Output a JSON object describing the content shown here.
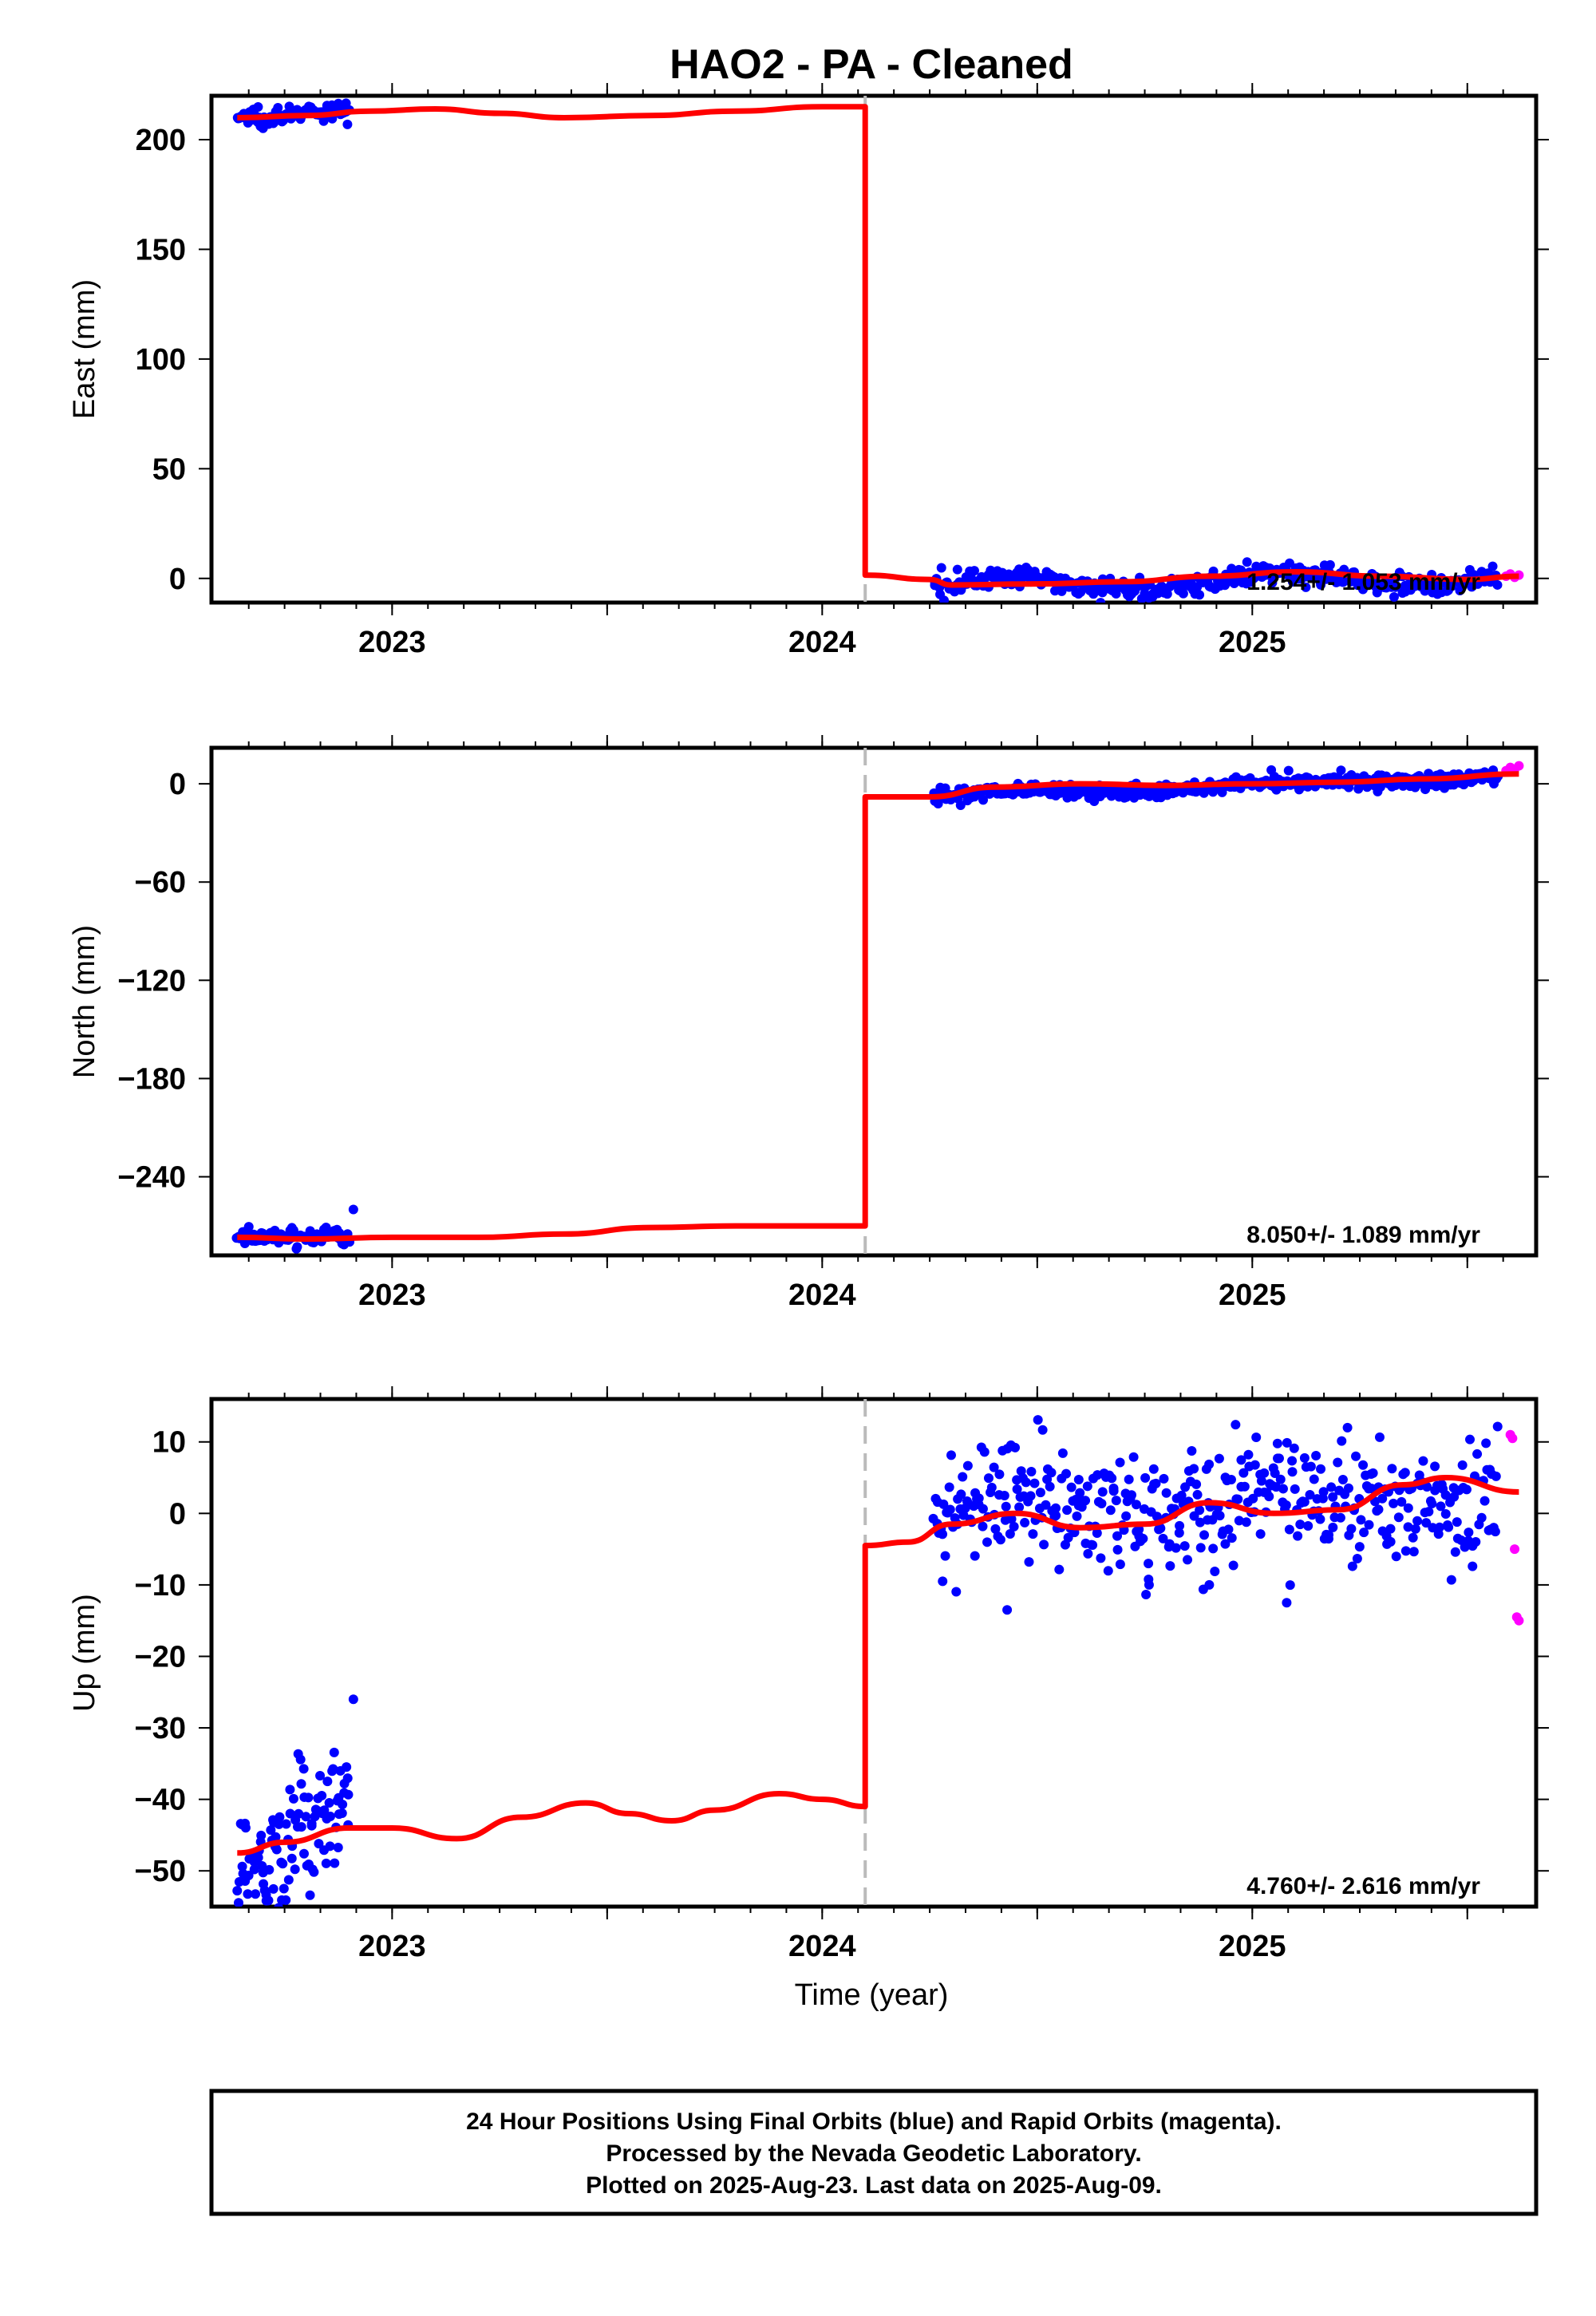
{
  "title": "HAO2  - PA - Cleaned",
  "xlabel": "Time (year)",
  "footer": {
    "line1": "24 Hour Positions Using Final Orbits (blue) and Rapid Orbits (magenta).",
    "line2": "Processed by the Nevada Geodetic Laboratory.",
    "line3": "Plotted on 2025-Aug-23. Last data on 2025-Aug-09."
  },
  "colors": {
    "final_orbits": "#0000ff",
    "rapid_orbits": "#ff00ff",
    "model": "#ff0000",
    "offset_line": "#bbbbbb"
  },
  "chart_data": [
    {
      "type": "scatter",
      "ylabel": "East (mm)",
      "xlim": [
        2022.58,
        2025.66
      ],
      "ylim": [
        -11,
        220
      ],
      "xticks": [
        2023,
        2024,
        2025
      ],
      "yticks": [
        0,
        50,
        100,
        150,
        200
      ],
      "grid": false,
      "rate_label": "1.254+/- 1.053 mm/yr",
      "offset_epoch": 2024.1,
      "model": {
        "x": [
          2022.64,
          2022.8,
          2022.95,
          2023.1,
          2023.25,
          2023.4,
          2023.6,
          2023.8,
          2024.0,
          2024.1,
          2024.1,
          2024.25,
          2024.3,
          2024.5,
          2024.7,
          2024.9,
          2025.1,
          2025.3,
          2025.5,
          2025.62
        ],
        "y": [
          210,
          211,
          213,
          214,
          212,
          210,
          211,
          213,
          215,
          215,
          1.5,
          -0.5,
          -3,
          -2.5,
          -1.5,
          1,
          3,
          1,
          -0.5,
          1
        ]
      },
      "final_segments": [
        {
          "x_start": 2022.64,
          "x_end": 2022.9,
          "y_start": 210,
          "y_end": 213,
          "spread": 2.2,
          "count": 90
        },
        {
          "x_start": 2024.26,
          "x_end": 2025.57,
          "y_start": -3,
          "y_end": 0.5,
          "spread": 2.2,
          "count": 420,
          "wave": 3
        }
      ],
      "rapid_points": {
        "x": [
          2025.59,
          2025.6,
          2025.61,
          2025.62
        ],
        "y": [
          1,
          2,
          0.5,
          1.5
        ]
      }
    },
    {
      "type": "scatter",
      "ylabel": "North (mm)",
      "xlim": [
        2022.58,
        2025.66
      ],
      "ylim": [
        -288,
        22
      ],
      "xticks": [
        2023,
        2024,
        2025
      ],
      "yticks": [
        0,
        -60,
        -120,
        -180,
        -240
      ],
      "grid": false,
      "rate_label": "8.050+/- 1.089 mm/yr",
      "offset_epoch": 2024.1,
      "model": {
        "x": [
          2022.64,
          2022.8,
          2023.0,
          2023.2,
          2023.4,
          2023.6,
          2023.8,
          2024.0,
          2024.1,
          2024.1,
          2024.25,
          2024.4,
          2024.6,
          2024.8,
          2025.0,
          2025.2,
          2025.4,
          2025.62
        ],
        "y": [
          -277,
          -278,
          -277,
          -277,
          -275,
          -271,
          -270,
          -270,
          -270,
          -8,
          -8,
          -2,
          0,
          -1,
          0,
          1,
          3,
          6
        ]
      },
      "final_segments": [
        {
          "x_start": 2022.64,
          "x_end": 2022.9,
          "y_start": -277,
          "y_end": -276,
          "spread": 2.5,
          "count": 90
        },
        {
          "x_start": 2024.26,
          "x_end": 2025.57,
          "y_start": -8,
          "y_end": 5,
          "spread": 2.5,
          "count": 420,
          "wave": 2
        }
      ],
      "outliers": {
        "x": [
          2022.91
        ],
        "y": [
          -260
        ]
      },
      "rapid_points": {
        "x": [
          2025.59,
          2025.6,
          2025.61,
          2025.62
        ],
        "y": [
          8,
          10,
          9,
          11
        ]
      }
    },
    {
      "type": "scatter",
      "ylabel": "Up (mm)",
      "xlim": [
        2022.58,
        2025.66
      ],
      "ylim": [
        -55,
        16
      ],
      "xticks": [
        2023,
        2024,
        2025
      ],
      "yticks": [
        10,
        0,
        -10,
        -20,
        -30,
        -40,
        -50
      ],
      "grid": false,
      "rate_label": "4.760+/- 2.616 mm/yr",
      "offset_epoch": 2024.1,
      "model": {
        "x": [
          2022.64,
          2022.75,
          2022.9,
          2023.0,
          2023.15,
          2023.3,
          2023.45,
          2023.55,
          2023.65,
          2023.75,
          2023.9,
          2024.0,
          2024.1,
          2024.1,
          2024.2,
          2024.3,
          2024.45,
          2024.6,
          2024.75,
          2024.9,
          2025.05,
          2025.2,
          2025.35,
          2025.45,
          2025.62
        ],
        "y": [
          -47.5,
          -46,
          -44,
          -44,
          -45.5,
          -42.5,
          -40.5,
          -42,
          -43,
          -41.5,
          -39.2,
          -40,
          -41,
          -4.5,
          -4,
          -1.5,
          0,
          -2,
          -1.5,
          1.5,
          0,
          0.5,
          4,
          5,
          3
        ]
      },
      "final_segments": [
        {
          "x_start": 2022.64,
          "x_end": 2022.9,
          "y_start": -50,
          "y_end": -40,
          "spread": 4.5,
          "count": 110
        },
        {
          "x_start": 2024.26,
          "x_end": 2025.57,
          "y_start": 0,
          "y_end": 3,
          "spread": 4.2,
          "count": 420,
          "wave": 2
        }
      ],
      "outliers": {
        "x": [
          2022.91,
          2024.43,
          2024.76,
          2024.9,
          2025.08,
          2024.28
        ],
        "y": [
          -26,
          -13.5,
          -10,
          -10,
          -12.5,
          -9.5
        ]
      },
      "rapid_points": {
        "x": [
          2025.6,
          2025.605,
          2025.61,
          2025.615,
          2025.62
        ],
        "y": [
          11,
          10.5,
          -5,
          -14.5,
          -15
        ]
      }
    }
  ]
}
